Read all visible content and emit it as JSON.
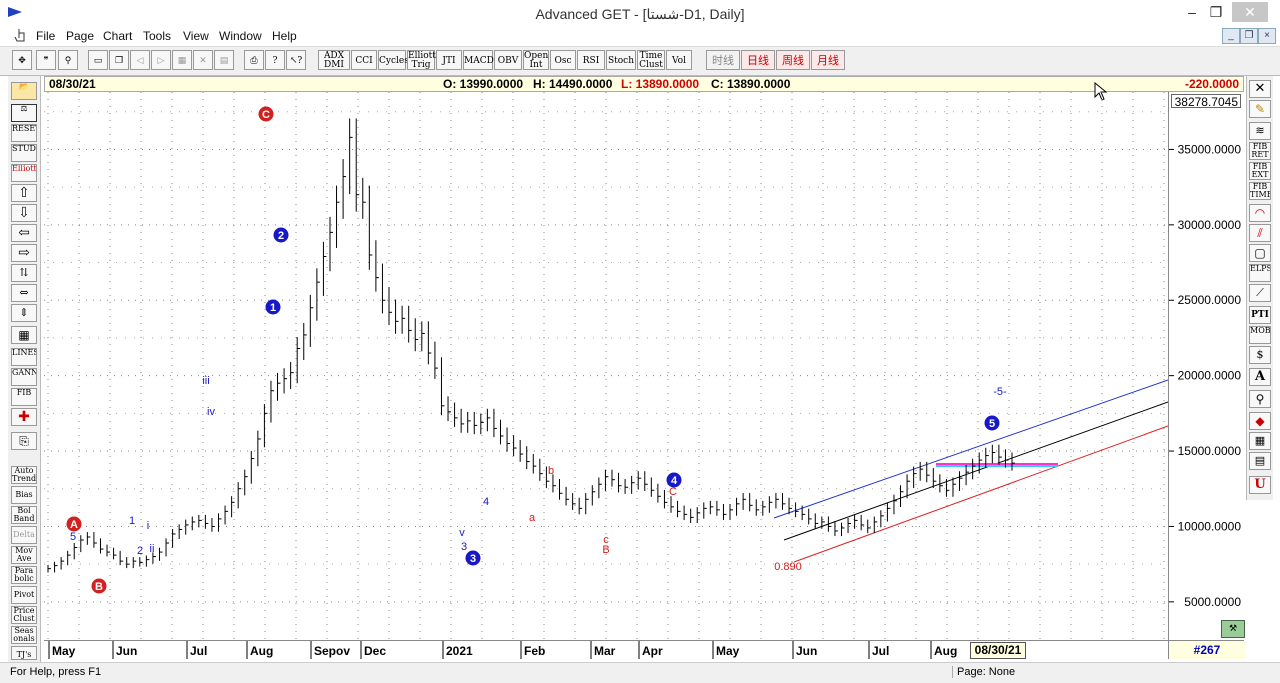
{
  "window": {
    "title": "Advanced GET - [شستا-D1, Daily]",
    "minimize": "–",
    "restore": "❐",
    "close": "✕"
  },
  "menu": [
    "File",
    "Page",
    "Chart",
    "Tools",
    "View",
    "Window",
    "Help"
  ],
  "toolbar": {
    "studies": [
      "ADX DMI",
      "CCI",
      "Cycles",
      "Elliott Trig",
      "JTI",
      "MACD",
      "OBV",
      "Open Int",
      "Osc",
      "RSI",
      "Stoch",
      "Time Clust",
      "Vol"
    ],
    "timeframes": [
      "时线",
      "日线",
      "周线",
      "月线"
    ]
  },
  "info": {
    "date": "08/30/21",
    "open": "O: 13990.0000",
    "high": "H: 14490.0000",
    "low": "L: 13890.0000",
    "close": "C: 13890.0000",
    "change": "-220.0000",
    "top_price": "38278.7045",
    "cursor_date": "08/30/21",
    "bar_count": "#267"
  },
  "left_tools": [
    "Auto Trend",
    "Bias",
    "Bol Band",
    "Delta",
    "Mov Ave",
    "Para bolic",
    "Pivot",
    "Price Clust",
    "Seas onals",
    "TJ's"
  ],
  "left_icons": [
    "RESET",
    "STUDY",
    "Elliott",
    "LINES",
    "GANN",
    "FIB"
  ],
  "right_tools": [
    "FIB RET",
    "FIB EXT",
    "FIB TIME",
    "ELPS",
    "PTI",
    "MOB"
  ],
  "colors": {
    "blue_wave": "#1818c8",
    "red_wave": "#d02020",
    "channel_blue": "#2030d0",
    "channel_red": "#e02020"
  },
  "chart_data": {
    "type": "bar",
    "ylim": [
      3000,
      38278.7045
    ],
    "y_ticks": [
      "35000.0000",
      "30000.0000",
      "25000.0000",
      "20000.0000",
      "15000.0000",
      "10000.0000",
      "5000.0000"
    ],
    "y_tick_values": [
      35000,
      30000,
      25000,
      20000,
      15000,
      10000,
      5000
    ],
    "x_labels": [
      "May",
      "Jun",
      "Jul",
      "Aug",
      "Sepov",
      "Dec",
      "2021",
      "Feb",
      "Mar",
      "Apr",
      "May",
      "Jun",
      "Jul",
      "Aug"
    ],
    "closes": [
      7200,
      7400,
      7700,
      8100,
      8600,
      9100,
      9300,
      8900,
      8500,
      8300,
      8100,
      7700,
      7500,
      7700,
      7600,
      7800,
      8000,
      8300,
      8900,
      9500,
      9800,
      10100,
      10300,
      10400,
      10200,
      10000,
      10500,
      11000,
      11600,
      12500,
      13300,
      14500,
      15800,
      17500,
      19000,
      19500,
      19800,
      20200,
      21800,
      22700,
      24500,
      26200,
      27900,
      29500,
      31500,
      33200,
      35800,
      32000,
      31500,
      28000,
      26500,
      25000,
      24200,
      23600,
      23800,
      23000,
      22400,
      22800,
      21500,
      20500,
      18000,
      17600,
      17200,
      16800,
      17000,
      16700,
      16900,
      17200,
      16500,
      16000,
      15500,
      15200,
      14800,
      14300,
      14000,
      13500,
      13000,
      12700,
      12200,
      11800,
      11500,
      11200,
      11800,
      12300,
      12800,
      13300,
      13100,
      12700,
      12600,
      12900,
      13200,
      12800,
      12400,
      12000,
      11600,
      11300,
      11000,
      10800,
      10600,
      10900,
      11200,
      11300,
      11100,
      10800,
      11100,
      11500,
      11800,
      11400,
      11100,
      11300,
      11600,
      11800,
      11500,
      11200,
      11000,
      10800,
      10500,
      10200,
      10300,
      10000,
      9700,
      9900,
      10200,
      10400,
      10100,
      9900,
      10300,
      10700,
      11200,
      11700,
      12300,
      13000,
      13500,
      13800,
      13400,
      13000,
      12700,
      12400,
      12800,
      13200,
      13600,
      14000,
      14400,
      14700,
      14900,
      14600,
      14400,
      14200
    ]
  },
  "annotations": [
    {
      "t": "A",
      "c": "red",
      "circle": true
    },
    {
      "t": "B",
      "c": "red",
      "circle": true
    },
    {
      "t": "C",
      "c": "red",
      "circle": true
    },
    {
      "t": "5",
      "c": "blue"
    },
    {
      "t": "1",
      "c": "blue"
    },
    {
      "t": "2",
      "c": "blue"
    },
    {
      "t": "i",
      "c": "blue"
    },
    {
      "t": "ii",
      "c": "blue"
    },
    {
      "t": "iii",
      "c": "blue"
    },
    {
      "t": "iv",
      "c": "blue"
    },
    {
      "t": "3",
      "c": "blue"
    },
    {
      "t": "v",
      "c": "blue"
    },
    {
      "t": "4",
      "c": "blue"
    },
    {
      "t": "1",
      "c": "blue",
      "circle": true
    },
    {
      "t": "2",
      "c": "blue",
      "circle": true
    },
    {
      "t": "3",
      "c": "blue",
      "circle": true
    },
    {
      "t": "4",
      "c": "blue",
      "circle": true
    },
    {
      "t": "5",
      "c": "blue",
      "circle": true
    },
    {
      "t": "a",
      "c": "red"
    },
    {
      "t": "b",
      "c": "red"
    },
    {
      "t": "c",
      "c": "red"
    },
    {
      "t": "B",
      "c": "red"
    },
    {
      "t": "C",
      "c": "red"
    },
    {
      "t": "0.890",
      "c": "red"
    },
    {
      "t": "-5-",
      "c": "blue"
    }
  ],
  "status": {
    "help": "For Help, press F1",
    "page": "Page: None"
  }
}
